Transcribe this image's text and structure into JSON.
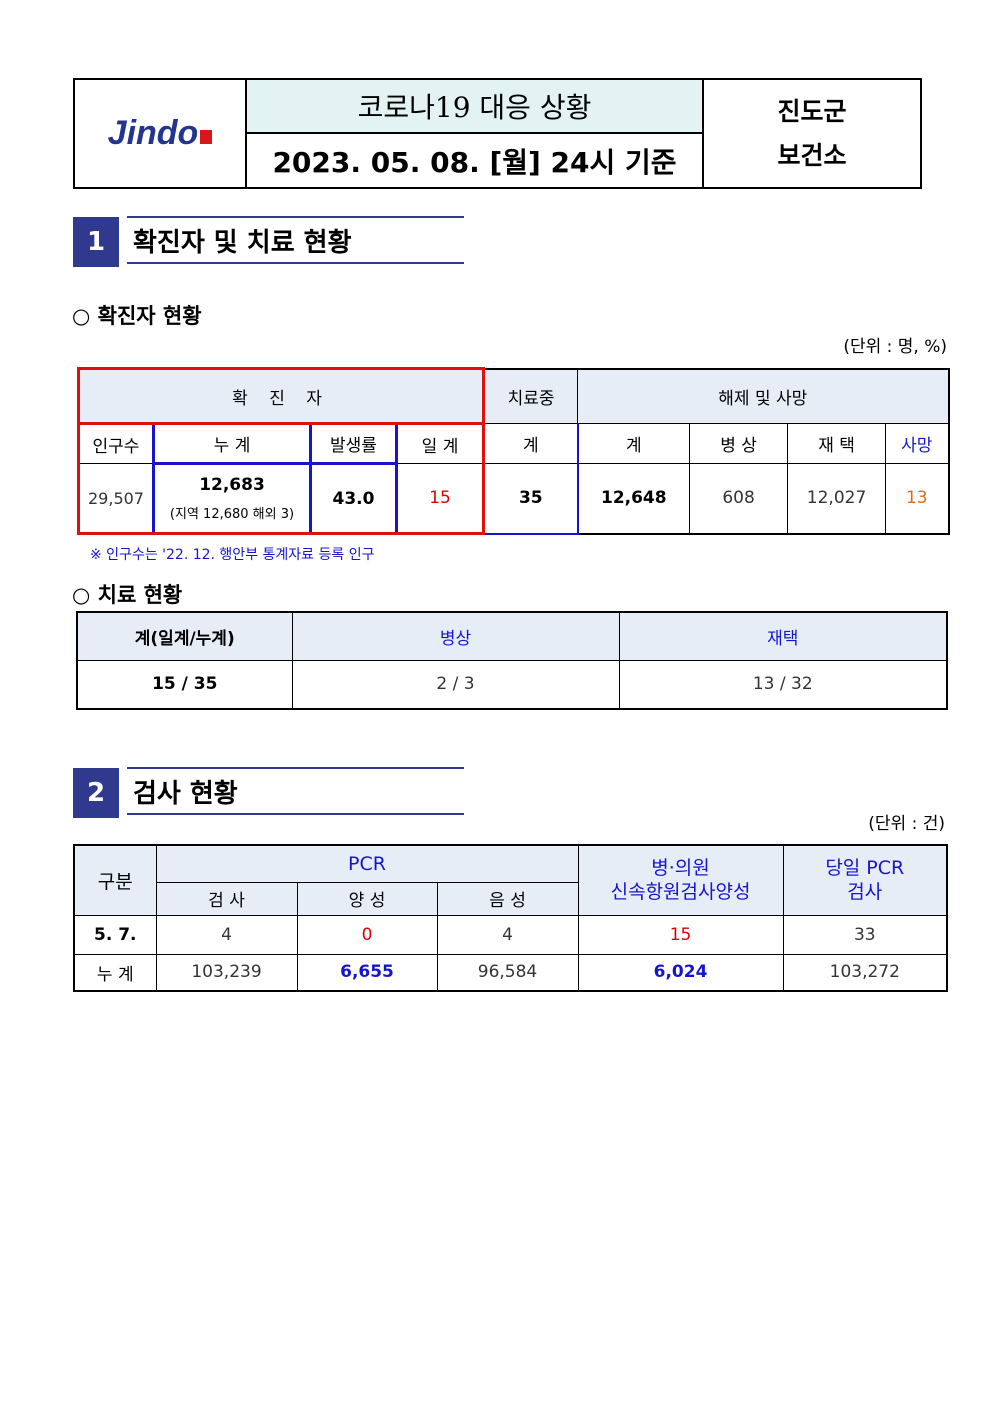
{
  "header": {
    "logo_text": "Jindo",
    "title": "코로나19 대응 상황",
    "date": "2023. 05. 08. [월] 24시 기준",
    "org_line1": "진도군",
    "org_line2": "보건소"
  },
  "section1": {
    "number": "1",
    "title": "확진자 및 치료 현황",
    "sub1": "○  확진자 현황",
    "unit": "(단위 : 명, %)",
    "table": {
      "h_confirmed": "확 진 자",
      "h_treating": "치료중",
      "h_release": "해제 및 사망",
      "cols": [
        "인구수",
        "누 계",
        "발생률",
        "일 계",
        "계",
        "계",
        "병 상",
        "재 택",
        "사망"
      ],
      "population": "29,507",
      "cumulative": "12,683",
      "cumulative_detail": "(지역 12,680 해외 3)",
      "rate": "43.0",
      "daily": "15",
      "treating": "35",
      "released_total": "12,648",
      "bed": "608",
      "home": "12,027",
      "deaths": "13"
    },
    "note": "※ 인구수는 '22. 12. 행안부 통계자료 등록 인구",
    "sub2": "○  치료 현황",
    "treat": {
      "headers": [
        "계(일계/누계)",
        "병상",
        "재택"
      ],
      "values": [
        "15 / 35",
        "2 / 3",
        "13 / 32"
      ]
    }
  },
  "section2": {
    "number": "2",
    "title": "검사 현황",
    "unit": "(단위 : 건)",
    "table": {
      "h_category": "구분",
      "h_pcr": "PCR",
      "h_test": "검 사",
      "h_pos": "양 성",
      "h_neg": "음 성",
      "h_rat_line1": "병·의원",
      "h_rat_line2": "신속항원검사양성",
      "h_daily_line1": "당일 PCR",
      "h_daily_line2": "검사",
      "rows": [
        {
          "label": "5. 7.",
          "test": "4",
          "pos": "0",
          "neg": "4",
          "rat": "15",
          "daily": "33"
        },
        {
          "label": "누 계",
          "test": "103,239",
          "pos": "6,655",
          "neg": "96,584",
          "rat": "6,024",
          "daily": "103,272"
        }
      ]
    }
  },
  "colors": {
    "accent": "#2f3a8f",
    "red": "#e00000",
    "blue": "#1515d0",
    "orange": "#e86a10"
  }
}
